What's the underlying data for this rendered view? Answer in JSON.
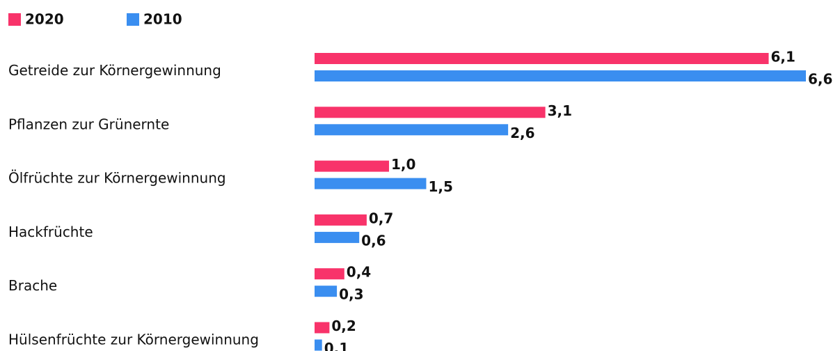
{
  "chart_data": {
    "type": "bar",
    "orientation": "horizontal",
    "categories": [
      "Getreide zur Körnergewinnung",
      "Pflanzen zur Grünernte",
      "Ölfrüchte zur Körnergewinnung",
      "Hackfrüchte",
      "Brache",
      "Hülsenfrüchte zur Körnergewinnung"
    ],
    "series": [
      {
        "name": "2020",
        "color": "#f8336a",
        "values": [
          6.1,
          3.1,
          1.0,
          0.7,
          0.4,
          0.2
        ],
        "value_labels": [
          "6,1",
          "3,1",
          "1,0",
          "0,7",
          "0,4",
          "0,2"
        ]
      },
      {
        "name": "2010",
        "color": "#3a8ef0",
        "values": [
          6.6,
          2.6,
          1.5,
          0.6,
          0.3,
          0.1
        ],
        "value_labels": [
          "6,6",
          "2,6",
          "1,5",
          "0,6",
          "0,3",
          "0,1"
        ]
      }
    ],
    "legend": "top-left"
  }
}
